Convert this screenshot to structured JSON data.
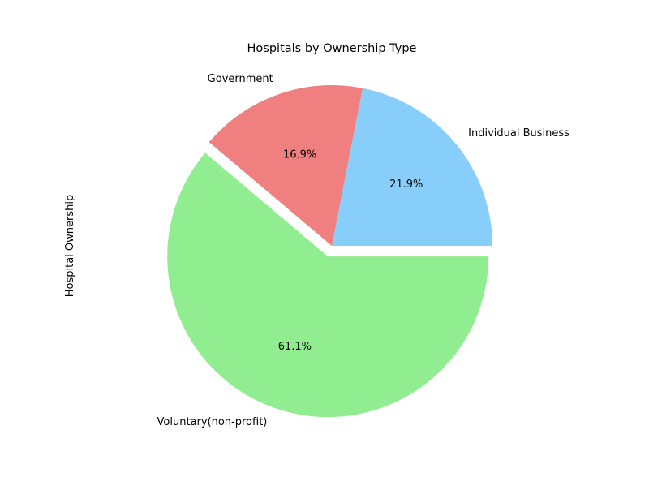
{
  "chart_data": {
    "type": "pie",
    "title": "Hospitals by Ownership Type",
    "ylabel": "Hospital Ownership",
    "labels": [
      "Individual Business",
      "Government",
      "Voluntary(non-profit)"
    ],
    "values": [
      21.9,
      16.9,
      61.1
    ],
    "pct_labels": [
      "21.9%",
      "16.9%",
      "61.1%"
    ],
    "colors": [
      "#87CEFA",
      "#F08080",
      "#90EE90"
    ],
    "exploded": [
      false,
      false,
      true
    ],
    "start_angle_deg": 0,
    "direction": "counterclockwise"
  }
}
